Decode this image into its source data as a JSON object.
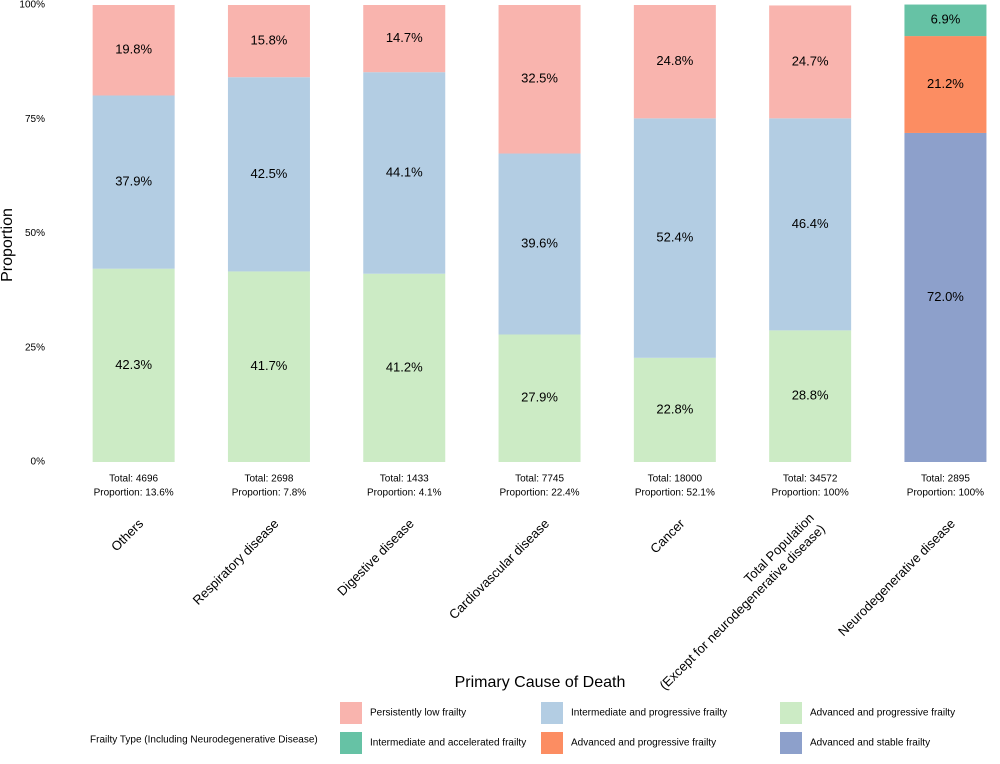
{
  "chart_data": {
    "type": "stacked_bar",
    "x_label": "Primary Cause of Death",
    "y_label": "Proportion",
    "categories": [
      "Others",
      "Respiratory disease",
      "Digestive disease",
      "Cardiovascular disease",
      "Cancer",
      "Total Population\n(Except for neurodegenerative disease)",
      "Neurodegenerative disease"
    ],
    "annotations": [
      [
        "Total: 4696",
        "Proportion: 13.6%"
      ],
      [
        "Total: 2698",
        "Proportion: 7.8%"
      ],
      [
        "Total: 1433",
        "Proportion: 4.1%"
      ],
      [
        "Total: 7745",
        "Proportion: 22.4%"
      ],
      [
        "Total: 18000",
        "Proportion: 52.1%"
      ],
      [
        "Total: 34572",
        "Proportion: 100%"
      ],
      [
        "Total: 2895",
        "Proportion: 100%"
      ]
    ],
    "legend_title": "Frailty Type (Including Neurodegenerative Disease)",
    "series": [
      {
        "name": "Persistently low frailty",
        "color": "#f9b4ae",
        "values": [
          19.8,
          15.8,
          14.7,
          32.5,
          24.8,
          24.7,
          null
        ],
        "value_labels": [
          "19.8%",
          "15.8%",
          "14.7%",
          "32.5%",
          "24.8%",
          "24.7%",
          null
        ]
      },
      {
        "name": "Intermediate and progressive frailty",
        "color": "#b3cde3",
        "values": [
          37.9,
          42.5,
          44.1,
          39.6,
          52.4,
          46.4,
          null
        ],
        "value_labels": [
          "37.9%",
          "42.5%",
          "44.1%",
          "39.6%",
          "52.4%",
          "46.4%",
          null
        ]
      },
      {
        "name": "Advanced and progressive frailty",
        "color": "#ccebc5",
        "values": [
          42.3,
          41.7,
          41.2,
          27.9,
          22.8,
          28.8,
          null
        ],
        "value_labels": [
          "42.3%",
          "41.7%",
          "41.2%",
          "27.9%",
          "22.8%",
          "28.8%",
          null
        ]
      },
      {
        "name": "Intermediate and accelerated frailty",
        "color": "#66c2a5",
        "values": [
          null,
          null,
          null,
          null,
          null,
          null,
          6.9
        ],
        "value_labels": [
          null,
          null,
          null,
          null,
          null,
          null,
          "6.9%"
        ]
      },
      {
        "name": "Advanced and progressive frailty",
        "color": "#fc8d62",
        "values": [
          null,
          null,
          null,
          null,
          null,
          null,
          21.2
        ],
        "value_labels": [
          null,
          null,
          null,
          null,
          null,
          null,
          "21.2%"
        ]
      },
      {
        "name": "Advanced and stable frailty",
        "color": "#8da0cb",
        "values": [
          null,
          null,
          null,
          null,
          null,
          null,
          72.0
        ],
        "value_labels": [
          null,
          null,
          null,
          null,
          null,
          null,
          "72.0%"
        ]
      }
    ],
    "ylim": [
      0,
      100
    ],
    "yticks": [
      {
        "value": 0,
        "label": "0%"
      },
      {
        "value": 25,
        "label": "25%"
      },
      {
        "value": 50,
        "label": "50%"
      },
      {
        "value": 75,
        "label": "75%"
      },
      {
        "value": 100,
        "label": "100%"
      }
    ]
  }
}
